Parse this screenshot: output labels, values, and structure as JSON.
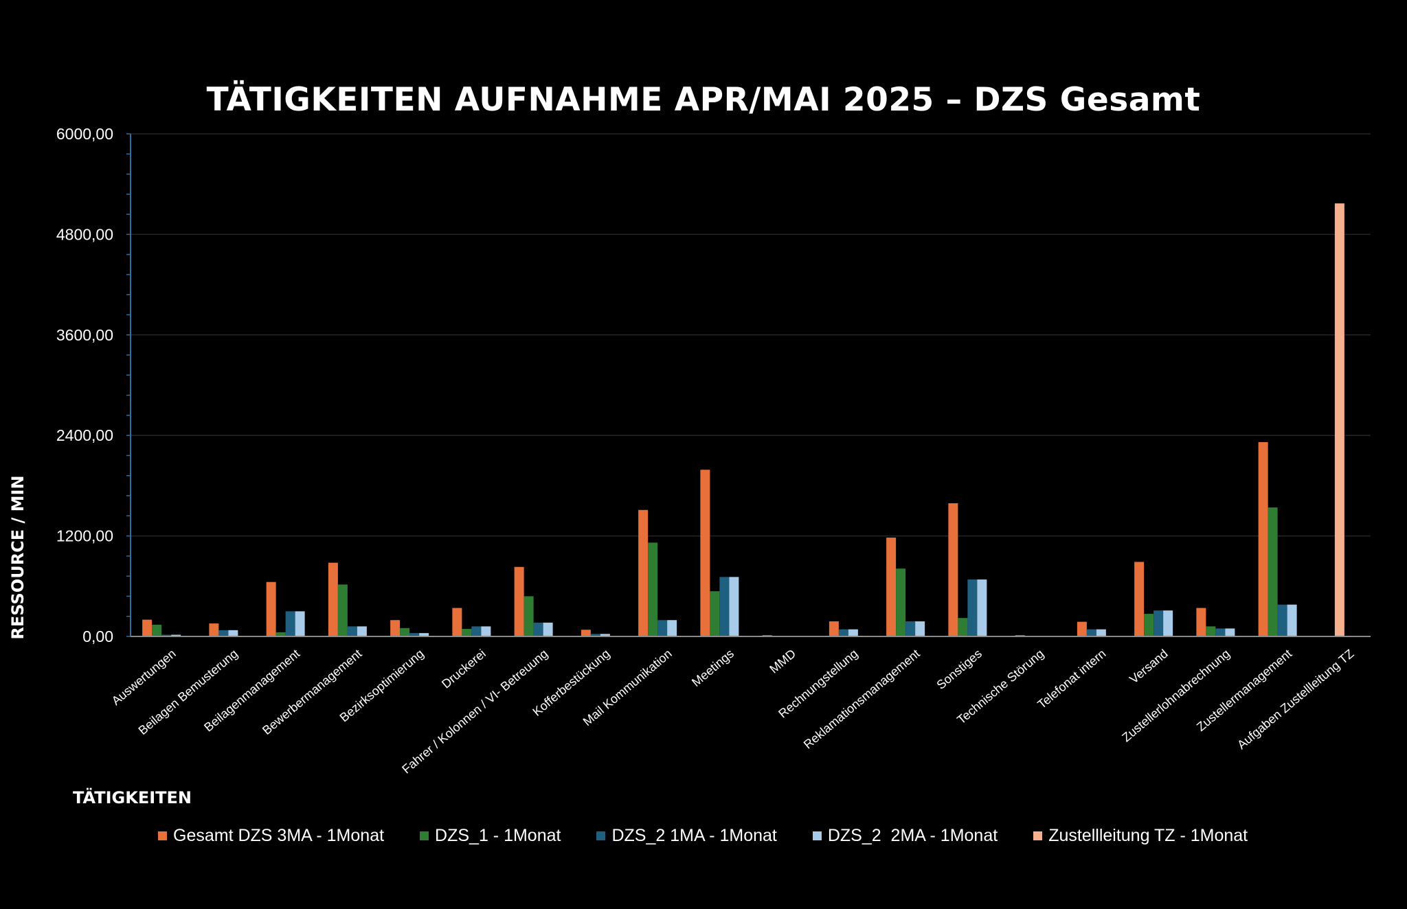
{
  "chart_data": {
    "type": "bar",
    "title": "TÄTIGKEITEN AUFNAHME APR/MAI 2025 – DZS Gesamt",
    "xlabel": "TÄTIGKEITEN",
    "ylabel": "RESSOURCE / MIN",
    "ylim": [
      0,
      6000
    ],
    "yticks": [
      "0,00",
      "1200,00",
      "2400,00",
      "3600,00",
      "4800,00",
      "6000,00"
    ],
    "grid": true,
    "legend_position": "bottom",
    "categories": [
      "Auswertungen",
      "Beilagen Bemusterung",
      "Beilagenmanagement",
      "Bewerbermanagement",
      "Bezirksoptimierung",
      "Druckerei",
      "Fahrer / Kolonnen / VI- Betreuung",
      "Kofferbestückung",
      "Mail Kommunikation",
      "Meetings",
      "MMD",
      "Rechnungstellung",
      "Reklamationsmanagement",
      "Sonstiges",
      "Technische Störung",
      "Telefonat intern",
      "Versand",
      "Zustellerlohnabrechnung",
      "Zustellermanagement",
      "Aufgaben Zustellleitung TZ"
    ],
    "series": [
      {
        "name": "Gesamt DZS 3MA - 1Monat",
        "color": "#e8703a",
        "values": [
          200,
          155,
          650,
          880,
          195,
          340,
          830,
          80,
          1510,
          1990,
          15,
          180,
          1180,
          1590,
          15,
          175,
          890,
          340,
          2320,
          0
        ]
      },
      {
        "name": "DZS_1 - 1Monat",
        "color": "#2e7d32",
        "values": [
          140,
          0,
          50,
          620,
          100,
          90,
          480,
          0,
          1120,
          540,
          8,
          0,
          810,
          220,
          0,
          0,
          270,
          120,
          1540,
          0
        ]
      },
      {
        "name": "DZS_2 1MA - 1Monat",
        "color": "#1f5f80",
        "values": [
          20,
          75,
          300,
          120,
          40,
          120,
          165,
          30,
          195,
          710,
          5,
          85,
          180,
          680,
          4,
          85,
          310,
          95,
          380,
          0
        ]
      },
      {
        "name": "DZS_2  2MA - 1Monat",
        "color": "#a7cbe8",
        "values": [
          20,
          75,
          300,
          120,
          40,
          120,
          165,
          30,
          195,
          710,
          5,
          85,
          180,
          680,
          4,
          85,
          310,
          95,
          380,
          0
        ]
      },
      {
        "name": "Zustellleitung TZ - 1Monat",
        "color": "#f6b08e",
        "values": [
          0,
          0,
          0,
          0,
          0,
          0,
          0,
          0,
          0,
          0,
          0,
          0,
          0,
          0,
          0,
          0,
          0,
          0,
          0,
          5170
        ]
      }
    ]
  }
}
